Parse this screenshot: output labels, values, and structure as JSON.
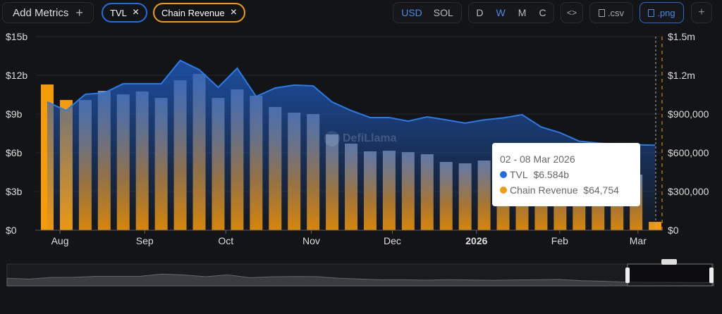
{
  "toolbar": {
    "add_metrics": "Add Metrics",
    "add_icon": "+",
    "metrics": [
      {
        "label": "TVL",
        "color": "#1f6fe0"
      },
      {
        "label": "Chain Revenue",
        "color": "#f39c12"
      }
    ],
    "remove_icon": "×",
    "currency": [
      "USD",
      "SOL"
    ],
    "currency_selected": "USD",
    "periods": [
      "D",
      "W",
      "M",
      "C"
    ],
    "period_selected": "W",
    "embed_icon": "<>",
    "csv": ".csv",
    "png": ".png",
    "plus": "+"
  },
  "watermark": "DefiLlama",
  "tooltip": {
    "date": "02 - 08 Mar 2026",
    "tvl_label": "TVL",
    "tvl_value": "$6.584b",
    "rev_label": "Chain Revenue",
    "rev_value": "$64,754"
  },
  "chart_data": {
    "type": "bar+area",
    "x_tick_labels": [
      "Aug",
      "Sep",
      "Oct",
      "Nov",
      "Dec",
      "2026",
      "Feb",
      "Mar"
    ],
    "left_axis": {
      "ticks": [
        "$0",
        "$3b",
        "$6b",
        "$9b",
        "$12b",
        "$15b"
      ],
      "range": [
        0,
        15
      ],
      "unit": "billion USD"
    },
    "right_axis": {
      "ticks": [
        "$0",
        "$300,000",
        "$600,000",
        "$900,000",
        "$1.2m",
        "$1.5m"
      ],
      "range": [
        0,
        1500000
      ]
    },
    "grid": true,
    "series": [
      {
        "name": "TVL",
        "type": "area",
        "axis": "left",
        "color": "#1f6fe0",
        "values": [
          9.93,
          9.27,
          10.53,
          10.64,
          11.35,
          11.35,
          11.35,
          13.15,
          12.44,
          11.07,
          12.55,
          10.36,
          11.02,
          11.24,
          11.18,
          9.93,
          9.27,
          8.73,
          8.73,
          8.45,
          8.78,
          8.55,
          8.3,
          8.55,
          8.7,
          8.95,
          8.0,
          7.55,
          6.9,
          6.75,
          6.65,
          6.62,
          6.584
        ]
      },
      {
        "name": "Chain Revenue",
        "type": "bar",
        "axis": "right",
        "color": "#f39c12",
        "values": [
          1129000,
          1009000,
          1009000,
          1080000,
          1053000,
          1075000,
          1025000,
          1162000,
          1211000,
          1025000,
          1091000,
          1042000,
          955000,
          911000,
          900000,
          742000,
          671000,
          611000,
          616000,
          605000,
          589000,
          529000,
          518000,
          540000,
          520000,
          500000,
          480000,
          470000,
          460000,
          450000,
          440000,
          431000,
          64754
        ]
      }
    ]
  }
}
